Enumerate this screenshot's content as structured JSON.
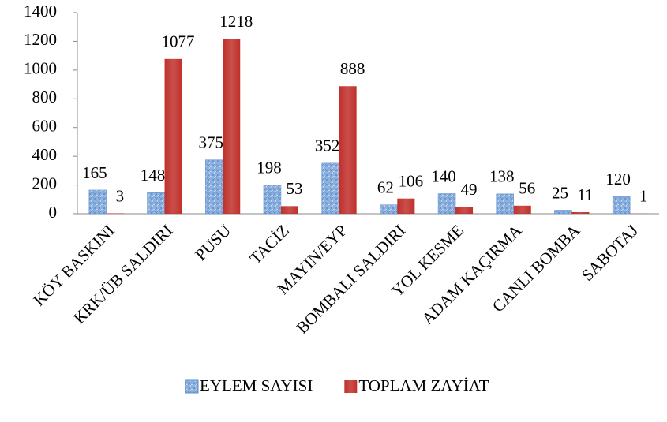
{
  "chart_data": {
    "type": "bar",
    "categories": [
      "KÖY BASKINI",
      "KRK/ÜB SALDIRI",
      "PUSU",
      "TACİZ",
      "MAYIN/EYP",
      "BOMBALI SALDIRI",
      "YOL KESME",
      "ADAM KAÇIRMA",
      "CANLI BOMBA",
      "SABOTAJ"
    ],
    "series": [
      {
        "name": "EYLEM SAYISI",
        "color": "#8eb4e3",
        "values": [
          165,
          148,
          375,
          198,
          352,
          62,
          140,
          138,
          25,
          120
        ]
      },
      {
        "name": "TOPLAM ZAYİAT",
        "color": "#c0302b",
        "values": [
          3,
          1077,
          1218,
          53,
          888,
          106,
          49,
          56,
          11,
          1
        ]
      }
    ],
    "ylim": [
      0,
      1400
    ],
    "yticks": [
      0,
      200,
      400,
      600,
      800,
      1000,
      1200,
      1400
    ],
    "grid": false,
    "legend": "bottom"
  }
}
